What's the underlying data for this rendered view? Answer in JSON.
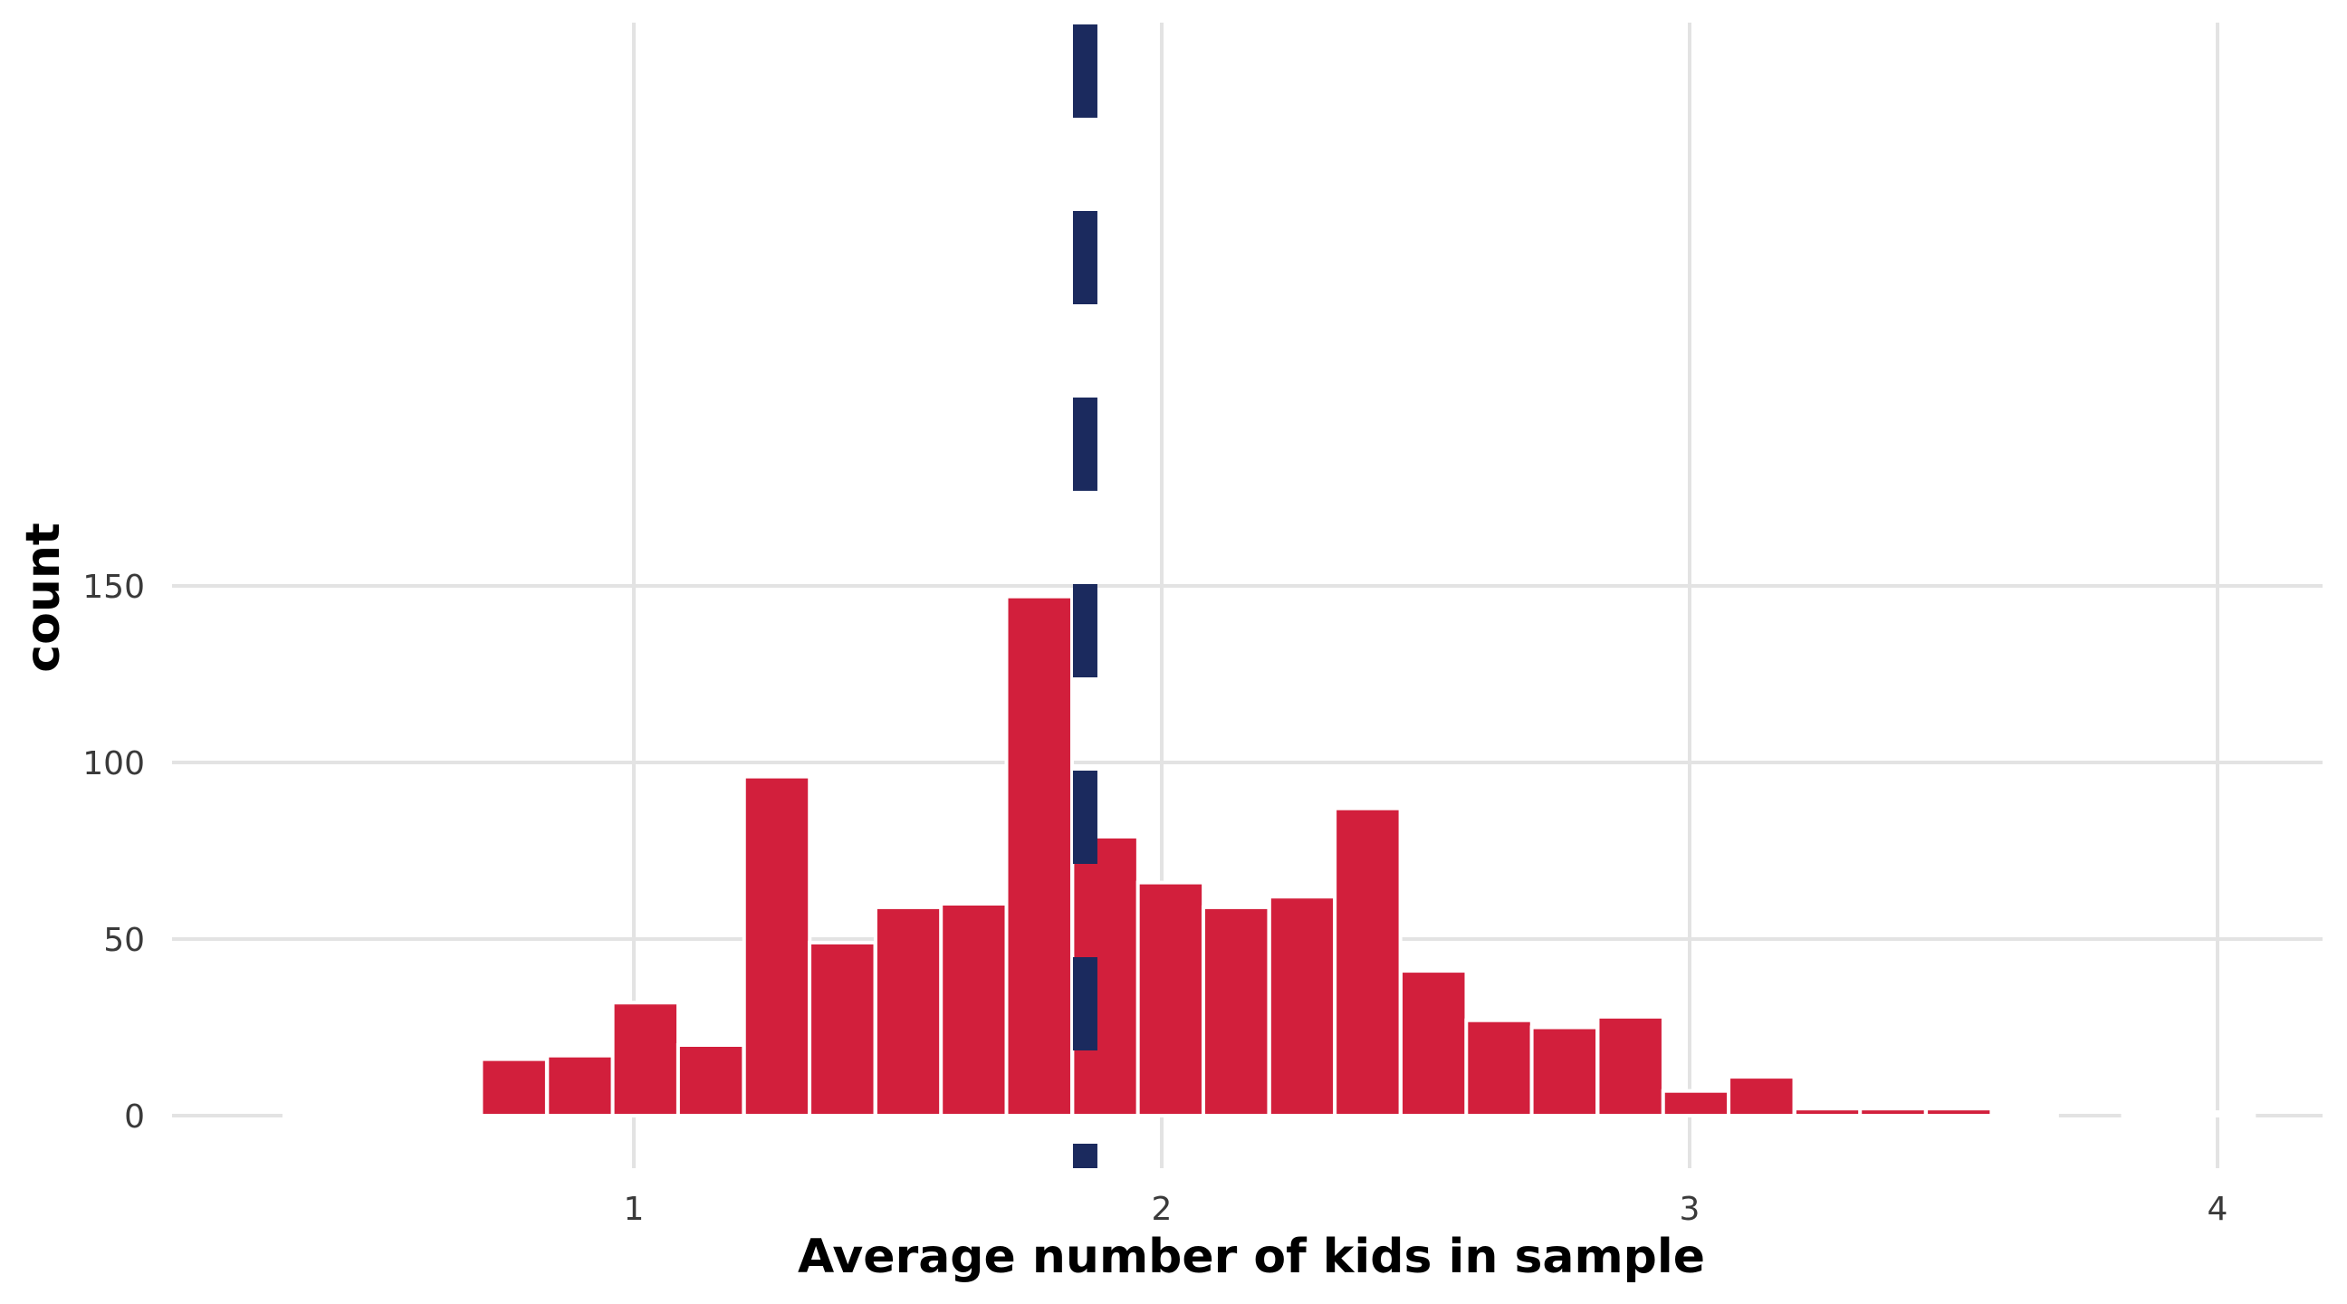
{
  "chart_data": {
    "type": "bar",
    "title": "",
    "xlabel": "Average number of kids in sample",
    "ylabel": "count",
    "xlim": [
      0.15,
      4.2
    ],
    "ylim": [
      -14,
      155
    ],
    "x_ticks": [
      1,
      2,
      3,
      4
    ],
    "y_ticks": [
      0,
      50,
      100,
      150
    ],
    "bin_width": 0.1243,
    "bins": [
      {
        "x": 0.4,
        "count": 1
      },
      {
        "x": 0.525,
        "count": 1
      },
      {
        "x": 0.649,
        "count": 1
      },
      {
        "x": 0.773,
        "count": 16
      },
      {
        "x": 0.898,
        "count": 17
      },
      {
        "x": 1.022,
        "count": 32
      },
      {
        "x": 1.146,
        "count": 20
      },
      {
        "x": 1.271,
        "count": 96
      },
      {
        "x": 1.395,
        "count": 49
      },
      {
        "x": 1.52,
        "count": 59
      },
      {
        "x": 1.644,
        "count": 60
      },
      {
        "x": 1.768,
        "count": 147
      },
      {
        "x": 1.893,
        "count": 79
      },
      {
        "x": 2.017,
        "count": 66
      },
      {
        "x": 2.141,
        "count": 59
      },
      {
        "x": 2.266,
        "count": 62
      },
      {
        "x": 2.39,
        "count": 87
      },
      {
        "x": 2.515,
        "count": 41
      },
      {
        "x": 2.639,
        "count": 27
      },
      {
        "x": 2.763,
        "count": 25
      },
      {
        "x": 2.888,
        "count": 28
      },
      {
        "x": 3.012,
        "count": 7
      },
      {
        "x": 3.136,
        "count": 11
      },
      {
        "x": 3.261,
        "count": 2
      },
      {
        "x": 3.385,
        "count": 2
      },
      {
        "x": 3.51,
        "count": 2
      },
      {
        "x": 3.634,
        "count": 1
      },
      {
        "x": 3.758,
        "count": 0
      },
      {
        "x": 3.883,
        "count": 1
      },
      {
        "x": 4.007,
        "count": 1
      }
    ],
    "reference_line": {
      "x": 1.855,
      "style": "dashed"
    },
    "grid": true,
    "colors": {
      "bar_fill": "#D21F3C",
      "bar_outline": "#FFFFFF",
      "reference_line": "#1B2A5E",
      "grid": "#E3E3E3"
    }
  }
}
